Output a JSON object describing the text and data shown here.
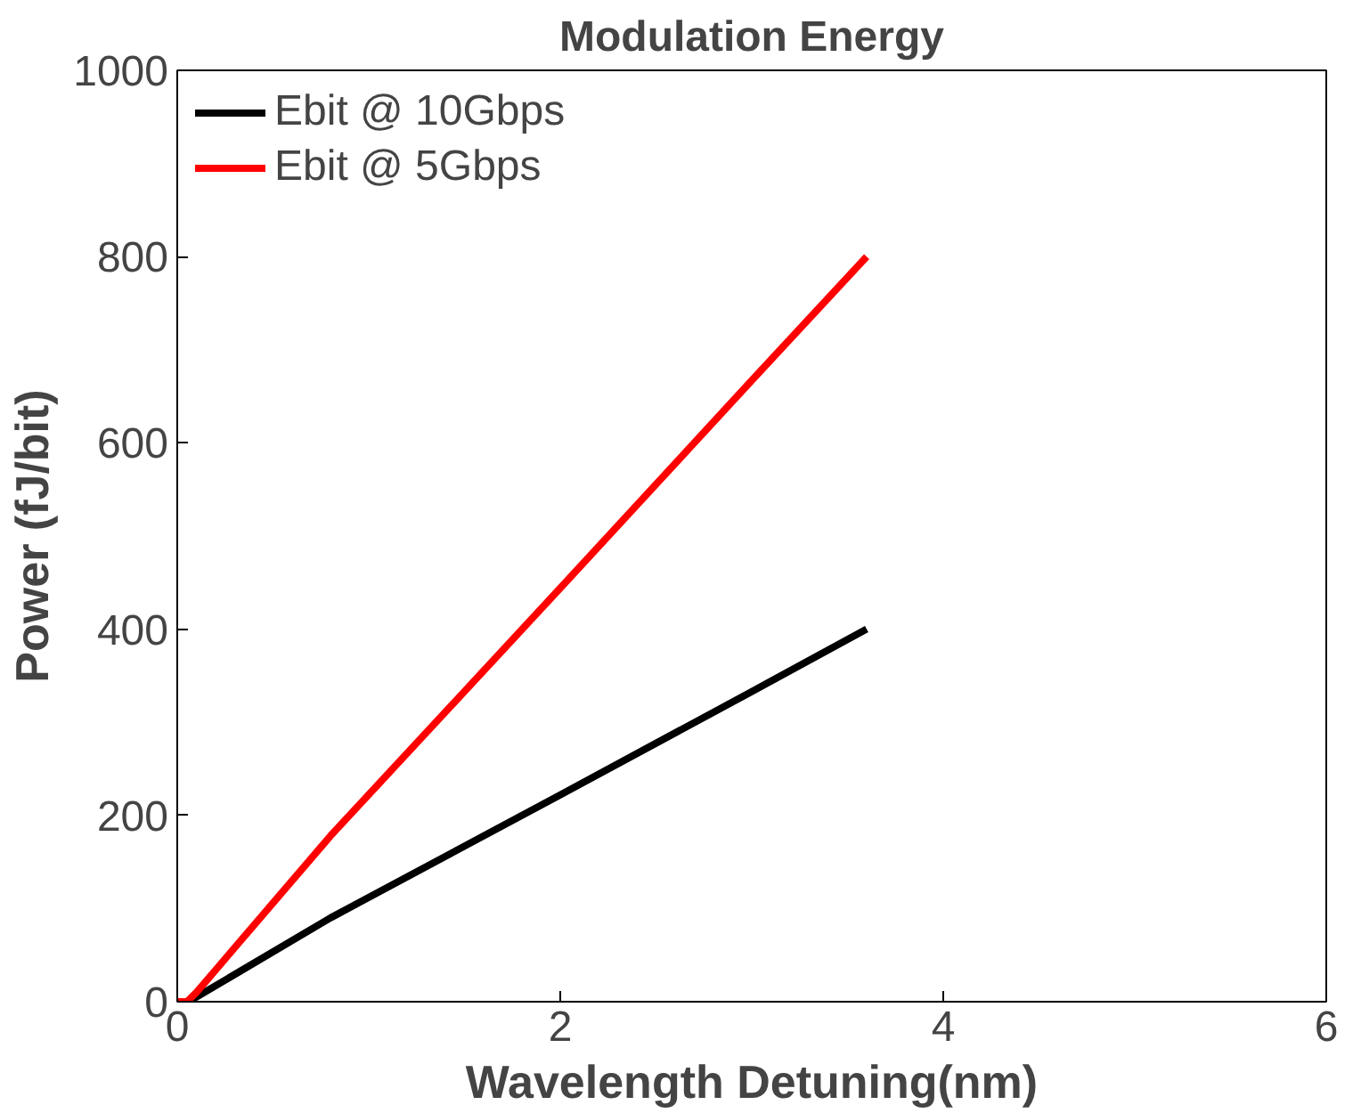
{
  "chart_data": {
    "type": "line",
    "title": "Modulation Energy",
    "xlabel": "Wavelength Detuning(nm)",
    "ylabel": "Power (fJ/bit)",
    "x": [
      0,
      0.05,
      0.1,
      0.8,
      2,
      3,
      3.6
    ],
    "series": [
      {
        "name": "Ebit @ 10Gbps",
        "color": "#000000",
        "values": [
          0,
          0,
          5,
          90,
          222,
          333,
          400
        ]
      },
      {
        "name": "Ebit @ 5Gbps",
        "color": "#ff0000",
        "values": [
          0,
          0,
          10,
          178,
          444,
          667,
          800
        ]
      }
    ],
    "xlim": [
      0,
      6
    ],
    "xticks": [
      0,
      2,
      4,
      6
    ],
    "ylim": [
      0,
      1000
    ],
    "yticks": [
      0,
      200,
      400,
      600,
      800,
      1000
    ],
    "grid": false,
    "legend": "top left",
    "marker": "none",
    "line_style": "solid"
  }
}
